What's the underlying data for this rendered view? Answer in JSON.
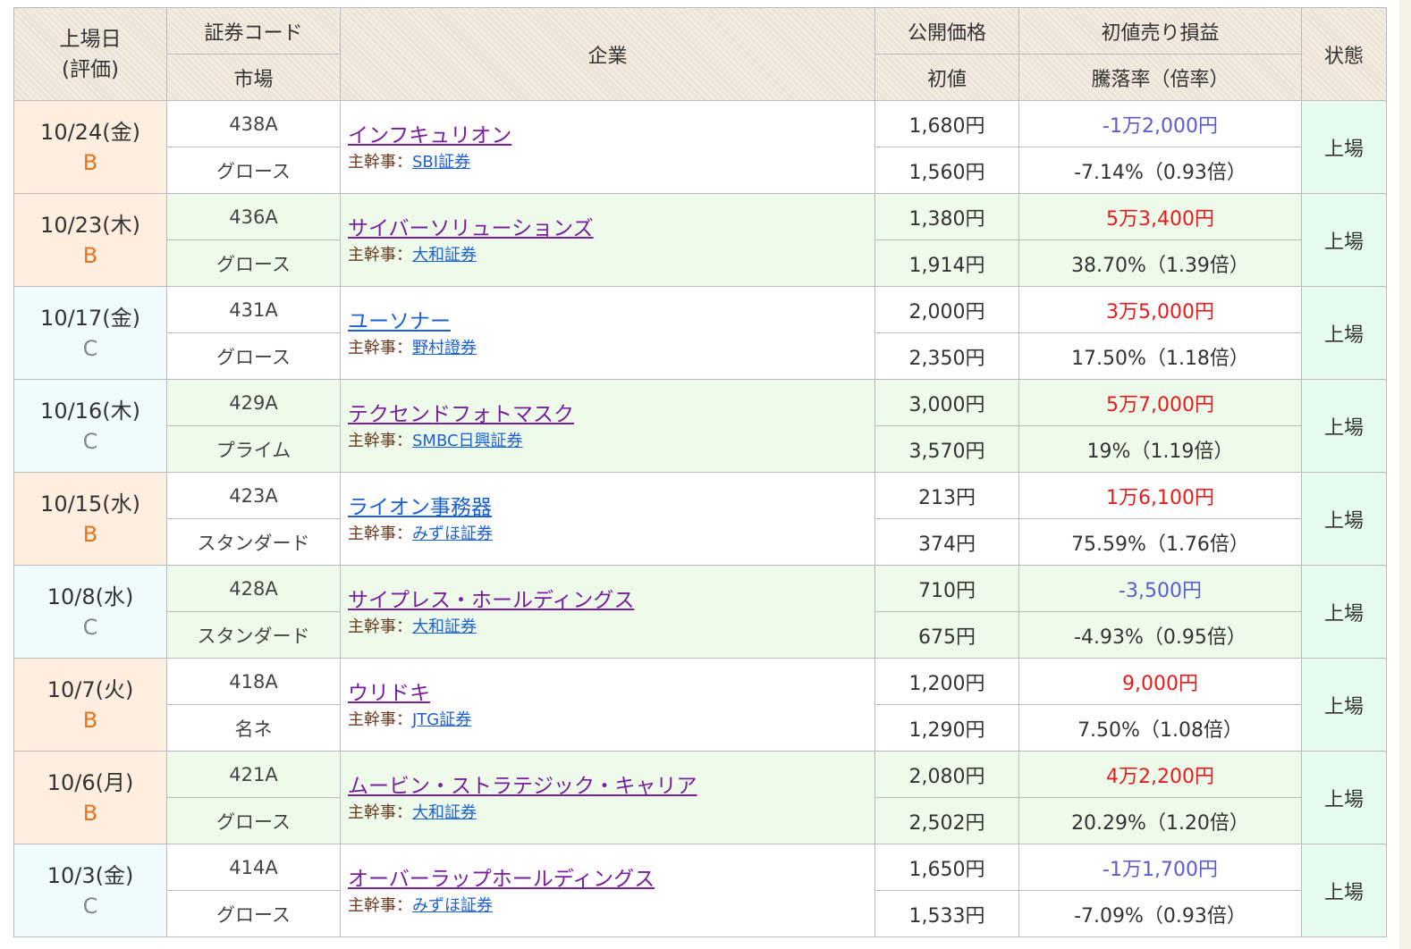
{
  "header": {
    "date_l1": "上場日",
    "date_l2": "(評価)",
    "code": "証券コード",
    "market": "市場",
    "company": "企業",
    "offer_price": "公開価格",
    "first_price": "初値",
    "gain": "初値売り損益",
    "ratio": "騰落率（倍率）",
    "status": "状態"
  },
  "underwriter_label": "主幹事：",
  "rows": [
    {
      "date": "10/24(金)",
      "rank": "B",
      "code": "438A",
      "market": "グロース",
      "company": "インフキュリオン",
      "visited": true,
      "underwriter": "SBI証券",
      "offer": "1,680円",
      "first": "1,560円",
      "gain": "-1万2,000円",
      "ratio": "-7.14%（0.93倍）",
      "status": "上場"
    },
    {
      "date": "10/23(木)",
      "rank": "B",
      "code": "436A",
      "market": "グロース",
      "company": "サイバーソリューションズ",
      "visited": true,
      "underwriter": "大和証券",
      "offer": "1,380円",
      "first": "1,914円",
      "gain": "5万3,400円",
      "ratio": "38.70%（1.39倍）",
      "status": "上場"
    },
    {
      "date": "10/17(金)",
      "rank": "C",
      "code": "431A",
      "market": "グロース",
      "company": "ユーソナー",
      "visited": false,
      "underwriter": "野村證券",
      "offer": "2,000円",
      "first": "2,350円",
      "gain": "3万5,000円",
      "ratio": "17.50%（1.18倍）",
      "status": "上場"
    },
    {
      "date": "10/16(木)",
      "rank": "C",
      "code": "429A",
      "market": "プライム",
      "company": "テクセンドフォトマスク",
      "visited": true,
      "underwriter": "SMBC日興証券",
      "offer": "3,000円",
      "first": "3,570円",
      "gain": "5万7,000円",
      "ratio": "19%（1.19倍）",
      "status": "上場"
    },
    {
      "date": "10/15(水)",
      "rank": "B",
      "code": "423A",
      "market": "スタンダード",
      "company": "ライオン事務器",
      "visited": false,
      "underwriter": "みずほ証券",
      "offer": "213円",
      "first": "374円",
      "gain": "1万6,100円",
      "ratio": "75.59%（1.76倍）",
      "status": "上場"
    },
    {
      "date": "10/8(水)",
      "rank": "C",
      "code": "428A",
      "market": "スタンダード",
      "company": "サイプレス・ホールディングス",
      "visited": true,
      "underwriter": "大和証券",
      "offer": "710円",
      "first": "675円",
      "gain": "-3,500円",
      "ratio": "-4.93%（0.95倍）",
      "status": "上場"
    },
    {
      "date": "10/7(火)",
      "rank": "B",
      "code": "418A",
      "market": "名ネ",
      "company": "ウリドキ",
      "visited": true,
      "underwriter": "JTG証券",
      "offer": "1,200円",
      "first": "1,290円",
      "gain": "9,000円",
      "ratio": "7.50%（1.08倍）",
      "status": "上場"
    },
    {
      "date": "10/6(月)",
      "rank": "B",
      "code": "421A",
      "market": "グロース",
      "company": "ムービン・ストラテジック・キャリア",
      "visited": true,
      "underwriter": "大和証券",
      "offer": "2,080円",
      "first": "2,502円",
      "gain": "4万2,200円",
      "ratio": "20.29%（1.20倍）",
      "status": "上場"
    },
    {
      "date": "10/3(金)",
      "rank": "C",
      "code": "414A",
      "market": "グロース",
      "company": "オーバーラップホールディングス",
      "visited": true,
      "underwriter": "みずほ証券",
      "offer": "1,650円",
      "first": "1,533円",
      "gain": "-1万1,700円",
      "ratio": "-7.09%（0.93倍）",
      "status": "上場"
    }
  ],
  "colors": {
    "header_bg": "#ede3d6",
    "rank_b": "#e8741c",
    "rank_c": "#888888",
    "gain_positive": "#e61c1c",
    "gain_negative": "#5b5bd0",
    "link_visited": "#7a1ea0",
    "link": "#1a60d8",
    "row_alt": "#eefbeb",
    "status_bg": "#e7fbef"
  }
}
